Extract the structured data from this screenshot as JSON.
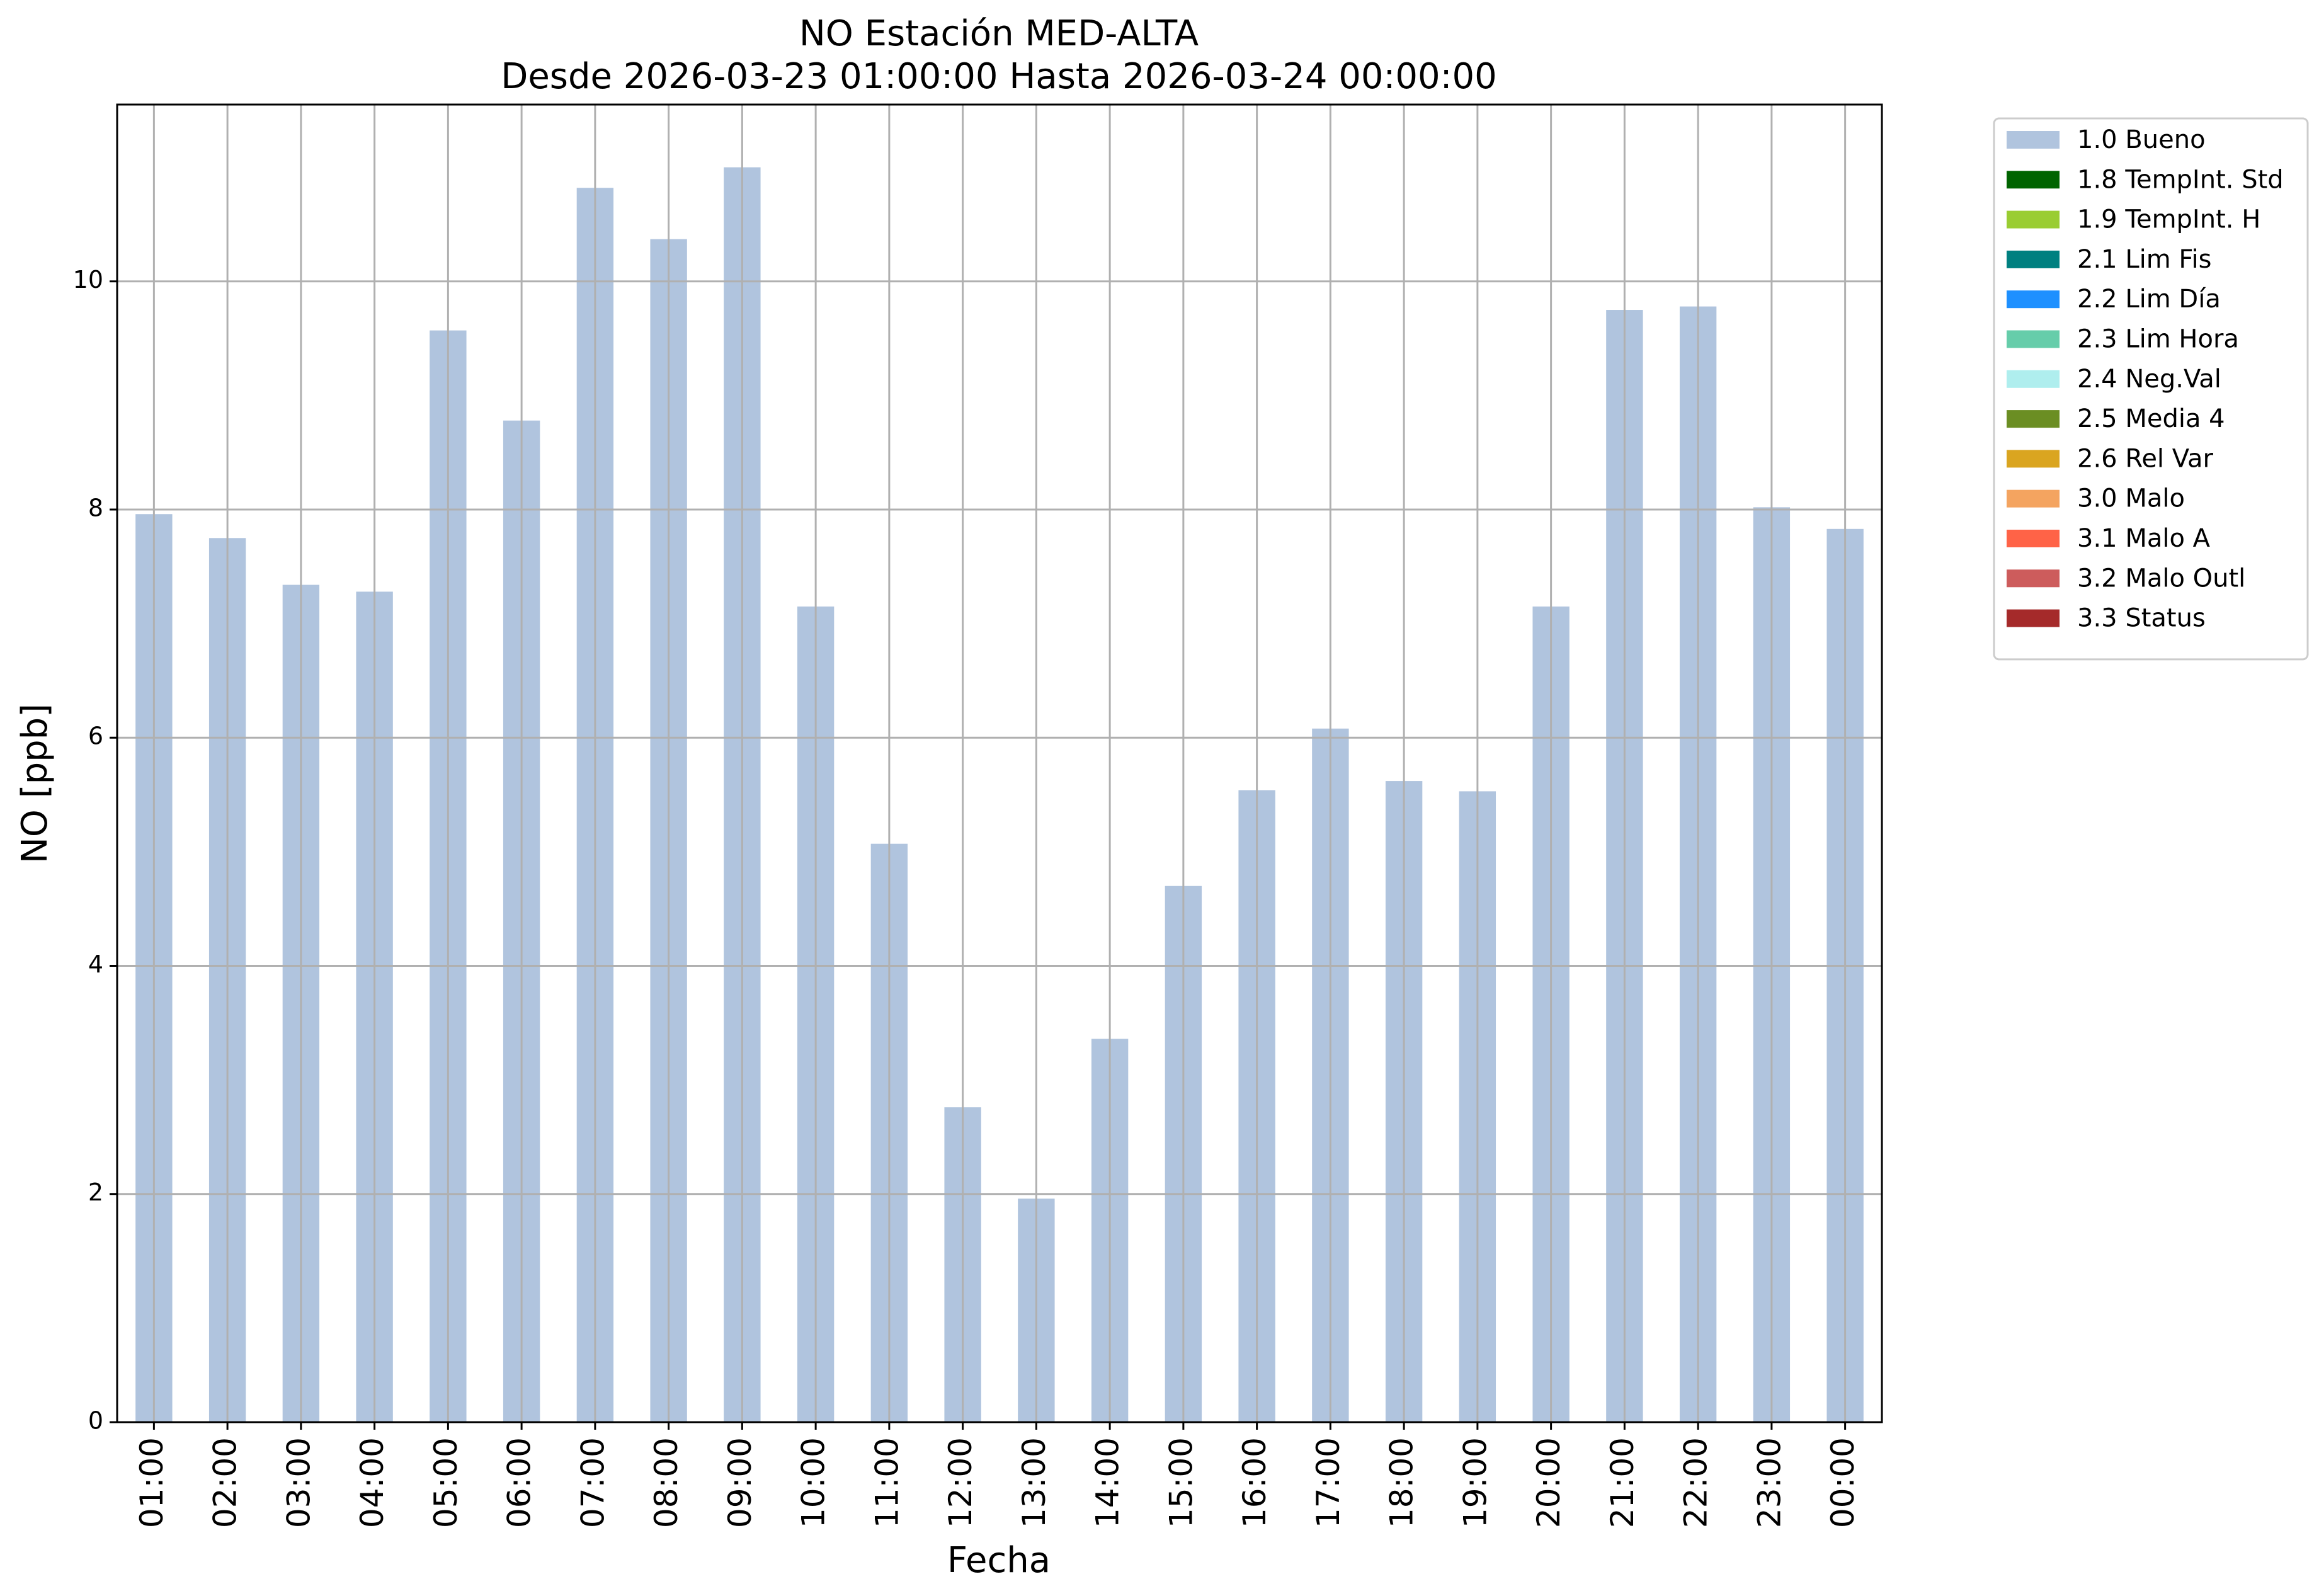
{
  "chart_data": {
    "type": "bar",
    "title": "NO Estación MED-ALTA",
    "subtitle": "Desde 2026-03-23 01:00:00 Hasta 2026-03-24 00:00:00",
    "xlabel": "Fecha",
    "ylabel": "NO [ppb]",
    "ylim": [
      0,
      11.55
    ],
    "yticks": [
      0,
      2,
      4,
      6,
      8,
      10
    ],
    "grid": true,
    "legend_position": "outside-right-top",
    "categories": [
      "01:00",
      "02:00",
      "03:00",
      "04:00",
      "05:00",
      "06:00",
      "07:00",
      "08:00",
      "09:00",
      "10:00",
      "11:00",
      "12:00",
      "13:00",
      "14:00",
      "15:00",
      "16:00",
      "17:00",
      "18:00",
      "19:00",
      "20:00",
      "21:00",
      "22:00",
      "23:00",
      "00:00"
    ],
    "series": [
      {
        "name": "1.0 Bueno",
        "color": "#b0c4de",
        "values": [
          7.96,
          7.75,
          7.34,
          7.28,
          9.57,
          8.78,
          10.82,
          10.37,
          11.0,
          7.15,
          5.07,
          2.76,
          1.96,
          3.36,
          4.7,
          5.54,
          6.08,
          5.62,
          5.53,
          7.15,
          9.75,
          9.78,
          8.02,
          7.83
        ]
      }
    ],
    "legend": [
      {
        "label": "1.0 Bueno",
        "color": "#b0c4de"
      },
      {
        "label": "1.8 TempInt. Std",
        "color": "#006400"
      },
      {
        "label": "1.9 TempInt. H",
        "color": "#9acd32"
      },
      {
        "label": "2.1 Lim Fis",
        "color": "#008080"
      },
      {
        "label": "2.2 Lim Día",
        "color": "#1e90ff"
      },
      {
        "label": "2.3 Lim Hora",
        "color": "#66cdaa"
      },
      {
        "label": "2.4 Neg.Val",
        "color": "#afeeee"
      },
      {
        "label": "2.5 Media 4",
        "color": "#6b8e23"
      },
      {
        "label": "2.6 Rel Var",
        "color": "#daa520"
      },
      {
        "label": "3.0 Malo",
        "color": "#f4a460"
      },
      {
        "label": "3.1 Malo A",
        "color": "#ff6347"
      },
      {
        "label": "3.2 Malo Outl",
        "color": "#cd5c5c"
      },
      {
        "label": "3.3 Status",
        "color": "#a52a2a"
      }
    ]
  }
}
